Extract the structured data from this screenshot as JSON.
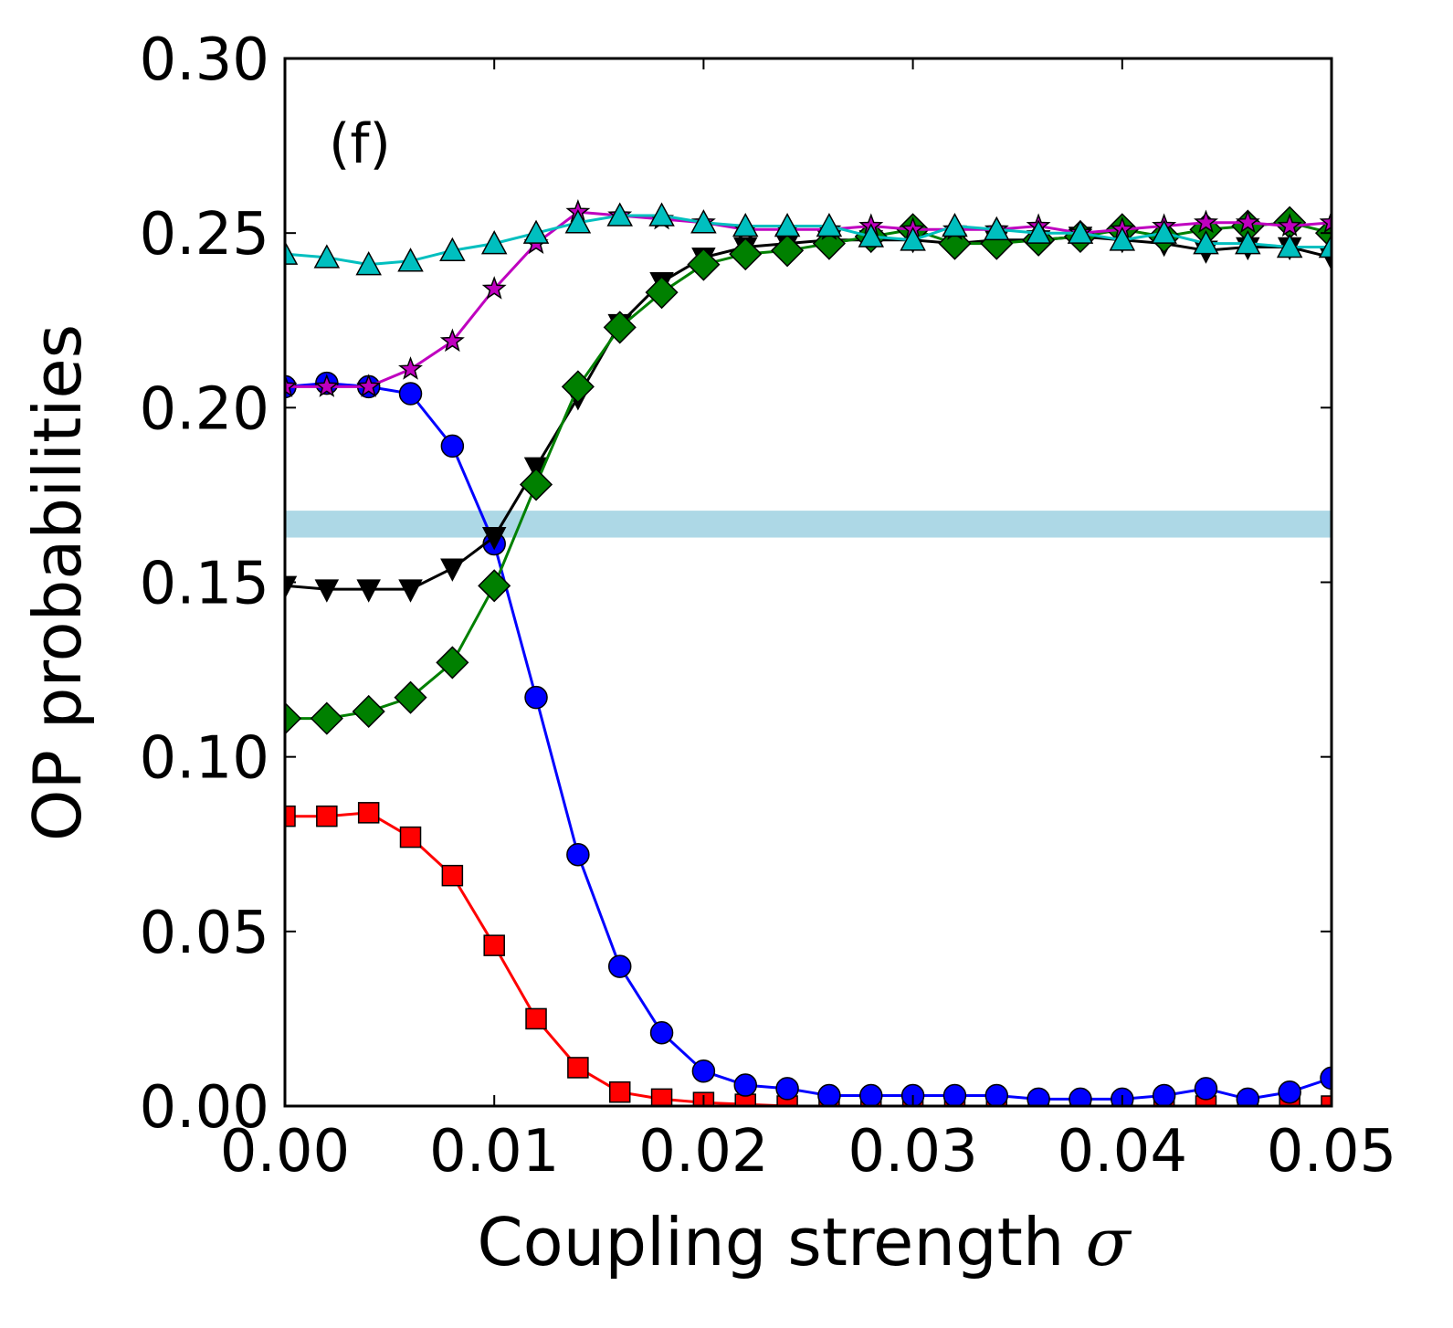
{
  "chart_data": {
    "type": "line",
    "panel_label": "(f)",
    "xlabel": "Coupling strength",
    "xlabel_symbol": "σ",
    "ylabel": "OP probabilities",
    "xlim": [
      0.0,
      0.05
    ],
    "ylim": [
      0.0,
      0.3
    ],
    "x_ticks": [
      0.0,
      0.01,
      0.02,
      0.03,
      0.04,
      0.05
    ],
    "x_tick_labels": [
      "0.00",
      "0.01",
      "0.02",
      "0.03",
      "0.04",
      "0.05"
    ],
    "y_ticks": [
      0.0,
      0.05,
      0.1,
      0.15,
      0.2,
      0.25,
      0.3
    ],
    "y_tick_labels": [
      "0.00",
      "0.05",
      "0.10",
      "0.15",
      "0.20",
      "0.25",
      "0.30"
    ],
    "grid": false,
    "reference_band": {
      "y_min": 0.1628,
      "y_max": 0.1705,
      "color": "#add8e6"
    },
    "x": [
      0.0,
      0.002,
      0.004,
      0.006,
      0.008,
      0.01,
      0.012,
      0.014,
      0.016,
      0.018,
      0.02,
      0.022,
      0.024,
      0.026,
      0.028,
      0.03,
      0.032,
      0.034,
      0.036,
      0.038,
      0.04,
      0.042,
      0.044,
      0.046,
      0.048,
      0.05
    ],
    "series": [
      {
        "name": "red squares",
        "color": "#ff0000",
        "marker": "square",
        "values": [
          0.083,
          0.083,
          0.084,
          0.077,
          0.066,
          0.046,
          0.025,
          0.011,
          0.004,
          0.002,
          0.001,
          0.0005,
          0.0,
          0.0,
          0.0,
          0.0,
          0.0,
          0.0,
          0.0,
          0.0,
          0.0,
          0.0,
          0.0,
          0.0,
          0.0,
          0.0
        ]
      },
      {
        "name": "blue circles",
        "color": "#0000ff",
        "marker": "circle",
        "values": [
          0.206,
          0.207,
          0.206,
          0.204,
          0.189,
          0.161,
          0.117,
          0.072,
          0.04,
          0.021,
          0.01,
          0.006,
          0.005,
          0.003,
          0.003,
          0.003,
          0.003,
          0.003,
          0.002,
          0.002,
          0.002,
          0.003,
          0.005,
          0.002,
          0.004,
          0.008
        ]
      },
      {
        "name": "black triangles down",
        "color": "#000000",
        "marker": "triangle-down",
        "values": [
          0.149,
          0.148,
          0.148,
          0.148,
          0.154,
          0.163,
          0.183,
          0.203,
          0.224,
          0.236,
          0.243,
          0.246,
          0.247,
          0.248,
          0.248,
          0.248,
          0.247,
          0.248,
          0.248,
          0.249,
          0.248,
          0.247,
          0.245,
          0.246,
          0.246,
          0.243
        ]
      },
      {
        "name": "green diamonds",
        "color": "#008000",
        "marker": "diamond",
        "values": [
          0.111,
          0.111,
          0.113,
          0.117,
          0.127,
          0.149,
          0.178,
          0.206,
          0.223,
          0.233,
          0.241,
          0.244,
          0.245,
          0.247,
          0.249,
          0.251,
          0.247,
          0.247,
          0.248,
          0.249,
          0.251,
          0.249,
          0.251,
          0.252,
          0.253,
          0.25
        ]
      },
      {
        "name": "magenta stars",
        "color": "#bf00bf",
        "marker": "star",
        "values": [
          0.206,
          0.206,
          0.206,
          0.211,
          0.219,
          0.234,
          0.247,
          0.256,
          0.255,
          0.254,
          0.253,
          0.251,
          0.251,
          0.251,
          0.252,
          0.251,
          0.251,
          0.251,
          0.252,
          0.25,
          0.251,
          0.252,
          0.253,
          0.253,
          0.252,
          0.253
        ]
      },
      {
        "name": "cyan triangles up",
        "color": "#00bfbf",
        "marker": "triangle-up",
        "values": [
          0.244,
          0.243,
          0.241,
          0.242,
          0.245,
          0.247,
          0.25,
          0.253,
          0.255,
          0.255,
          0.253,
          0.252,
          0.252,
          0.252,
          0.249,
          0.248,
          0.252,
          0.251,
          0.25,
          0.25,
          0.248,
          0.25,
          0.247,
          0.247,
          0.246,
          0.246
        ]
      }
    ]
  }
}
